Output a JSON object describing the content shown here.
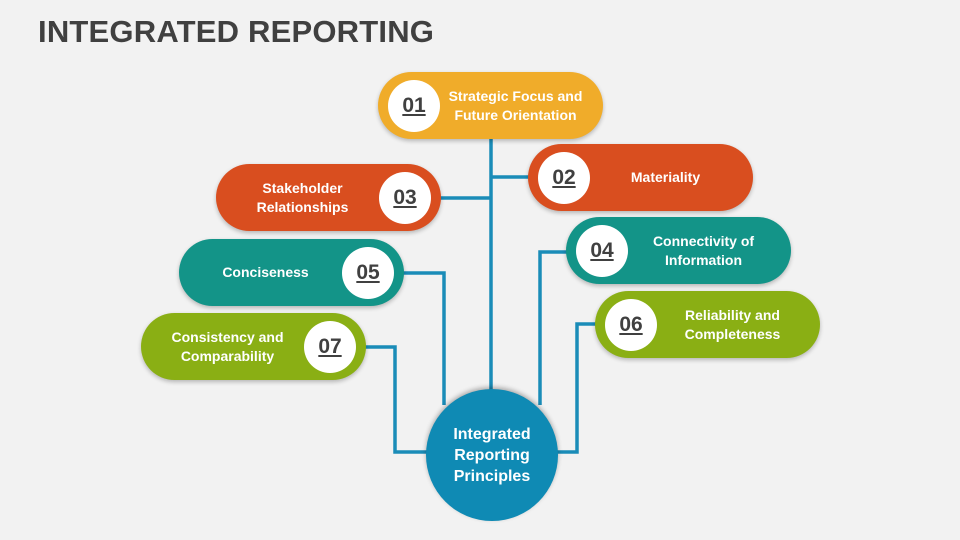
{
  "title": "INTEGRATED REPORTING",
  "colors": {
    "line": "#1a8cb8",
    "orange": "#f0ac2a",
    "red": "#d94e1f",
    "teal": "#139488",
    "green": "#8aaf14",
    "hub": "#0f8ab4"
  },
  "hub": {
    "label": "Integrated\nReporting\nPrinciples"
  },
  "items": [
    {
      "num": "01",
      "label": "Strategic Focus and\nFuture Orientation"
    },
    {
      "num": "02",
      "label": "Materiality"
    },
    {
      "num": "03",
      "label": "Stakeholder\nRelationships"
    },
    {
      "num": "04",
      "label": "Connectivity of\nInformation"
    },
    {
      "num": "05",
      "label": "Conciseness"
    },
    {
      "num": "06",
      "label": "Reliability and\nCompleteness"
    },
    {
      "num": "07",
      "label": "Consistency and\nComparability"
    }
  ]
}
